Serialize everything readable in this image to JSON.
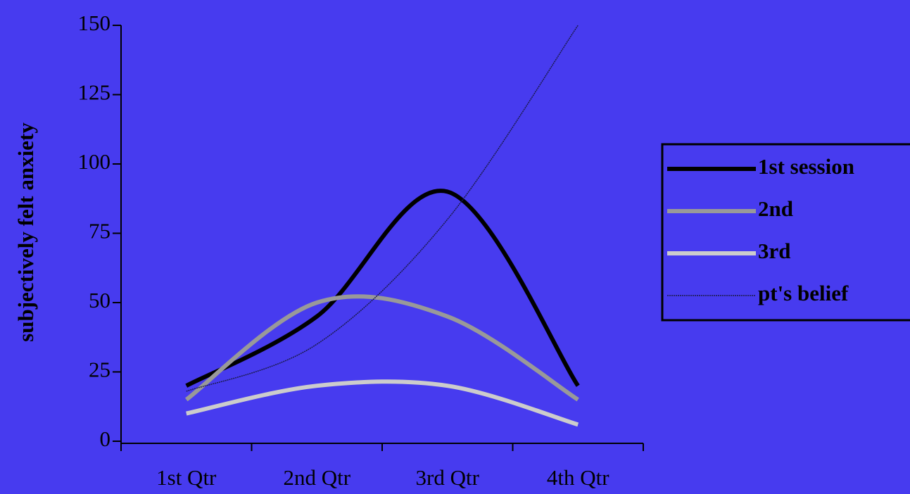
{
  "chart_data": {
    "type": "line",
    "smooth": true,
    "ylabel": "subjectively felt anxiety",
    "categories": [
      "1st Qtr",
      "2nd Qtr",
      "3rd Qtr",
      "4th Qtr"
    ],
    "series": [
      {
        "name": "1st session",
        "color": "#000000",
        "width": 6,
        "dash": null,
        "values": [
          20,
          45,
          90,
          20
        ]
      },
      {
        "name": "2nd",
        "color": "#999999",
        "width": 6,
        "dash": null,
        "values": [
          15,
          50,
          45,
          15
        ]
      },
      {
        "name": "3rd",
        "color": "#cccccc",
        "width": 6,
        "dash": null,
        "values": [
          10,
          20,
          20,
          6
        ]
      },
      {
        "name": "pt's belief",
        "color": "#1a1a4a",
        "width": 1.5,
        "dash": "2 1",
        "values": [
          18,
          35,
          80,
          150
        ]
      }
    ],
    "ylim": [
      0,
      150
    ],
    "yticks": [
      0,
      25,
      50,
      75,
      100,
      125,
      150
    ],
    "legend": "right"
  }
}
